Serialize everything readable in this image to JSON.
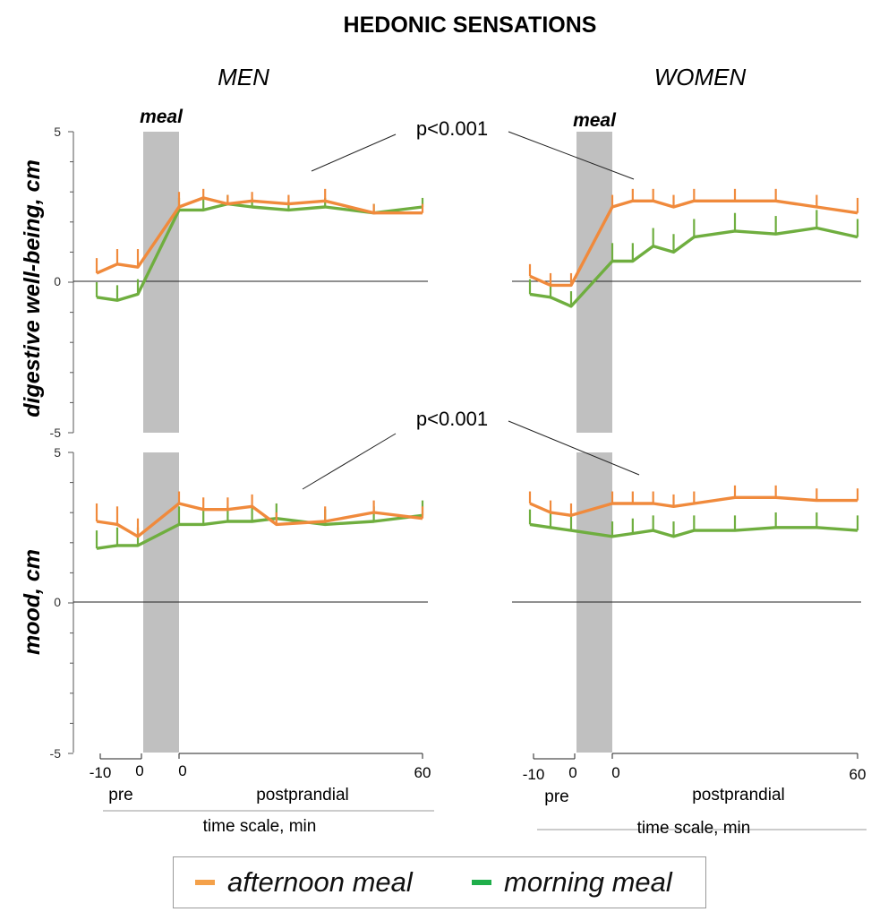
{
  "title": "HEDONIC SENSATIONS",
  "panels": {
    "men": "MEN",
    "women": "WOMEN"
  },
  "y_labels": {
    "top": "digestive well-being, cm",
    "bottom": "mood, cm"
  },
  "meal_label": "meal",
  "significance": {
    "top": "p<0.001",
    "bottom": "p<0.001"
  },
  "x_axis": {
    "ticks": [
      "-10",
      "0",
      "0",
      "60"
    ],
    "pre_label": "pre",
    "post_label": "postprandial",
    "label": "time scale, min"
  },
  "legend": {
    "afternoon": "afternoon meal",
    "morning": "morning meal"
  },
  "colors": {
    "afternoon": "#f08a3c",
    "morning": "#6fae3f",
    "meal_band": "#c0c0c0"
  },
  "chart_data": [
    {
      "type": "line",
      "panel": "MEN",
      "ylabel": "digestive well-being, cm",
      "ylim": [
        -5,
        5
      ],
      "series": [
        {
          "name": "afternoon meal",
          "pre_x": [
            -10,
            -5,
            0
          ],
          "pre_y": [
            0.3,
            0.6,
            0.5
          ],
          "post_x": [
            0,
            6,
            12,
            18,
            27,
            36,
            48,
            60
          ],
          "post_y": [
            2.5,
            2.8,
            2.6,
            2.7,
            2.6,
            2.7,
            2.3,
            2.3
          ],
          "err_pre": [
            0.5,
            0.5,
            0.6
          ],
          "err_post": [
            0.5,
            0.3,
            0.3,
            0.3,
            0.3,
            0.4,
            0.3,
            0.3
          ]
        },
        {
          "name": "morning meal",
          "pre_x": [
            -10,
            -5,
            0
          ],
          "pre_y": [
            -0.5,
            -0.6,
            -0.4
          ],
          "post_x": [
            0,
            6,
            12,
            18,
            27,
            36,
            48,
            60
          ],
          "post_y": [
            2.4,
            2.4,
            2.6,
            2.5,
            2.4,
            2.5,
            2.3,
            2.5
          ],
          "err_pre": [
            0.5,
            0.5,
            0.5
          ],
          "err_post": [
            0.4,
            0.4,
            0.3,
            0.3,
            0.3,
            0.3,
            0.3,
            0.3
          ]
        }
      ]
    },
    {
      "type": "line",
      "panel": "WOMEN",
      "ylabel": "digestive well-being, cm",
      "ylim": [
        -5,
        5
      ],
      "series": [
        {
          "name": "afternoon meal",
          "pre_x": [
            -10,
            -5,
            0
          ],
          "pre_y": [
            0.2,
            -0.1,
            -0.1
          ],
          "post_x": [
            0,
            6,
            12,
            18,
            24,
            36,
            48,
            60,
            72
          ],
          "post_y": [
            2.5,
            2.7,
            2.7,
            2.5,
            2.7,
            2.7,
            2.7,
            2.5,
            2.3
          ],
          "err_pre": [
            0.4,
            0.4,
            0.4
          ],
          "err_post": [
            0.4,
            0.4,
            0.4,
            0.4,
            0.4,
            0.4,
            0.4,
            0.4,
            0.5
          ]
        },
        {
          "name": "morning meal",
          "pre_x": [
            -10,
            -5,
            0
          ],
          "pre_y": [
            -0.4,
            -0.5,
            -0.8
          ],
          "post_x": [
            0,
            6,
            12,
            18,
            24,
            36,
            48,
            60,
            72
          ],
          "post_y": [
            0.7,
            0.7,
            1.2,
            1.0,
            1.5,
            1.7,
            1.6,
            1.8,
            1.5
          ],
          "err_pre": [
            0.5,
            0.5,
            0.5
          ],
          "err_post": [
            0.6,
            0.6,
            0.6,
            0.6,
            0.6,
            0.6,
            0.6,
            0.6,
            0.6
          ]
        }
      ]
    },
    {
      "type": "line",
      "panel": "MEN",
      "ylabel": "mood, cm",
      "ylim": [
        -5,
        5
      ],
      "series": [
        {
          "name": "afternoon meal",
          "pre_x": [
            -10,
            -5,
            0
          ],
          "pre_y": [
            2.7,
            2.6,
            2.2
          ],
          "post_x": [
            0,
            6,
            12,
            18,
            24,
            36,
            48,
            60
          ],
          "post_y": [
            3.3,
            3.1,
            3.1,
            3.2,
            2.6,
            2.7,
            3.0,
            2.8
          ],
          "err_pre": [
            0.6,
            0.6,
            0.6
          ],
          "err_post": [
            0.4,
            0.4,
            0.4,
            0.4,
            0.4,
            0.5,
            0.4,
            0.4
          ]
        },
        {
          "name": "morning meal",
          "pre_x": [
            -10,
            -5,
            0
          ],
          "pre_y": [
            1.8,
            1.9,
            1.9
          ],
          "post_x": [
            0,
            6,
            12,
            18,
            24,
            36,
            48,
            60
          ],
          "post_y": [
            2.6,
            2.6,
            2.7,
            2.7,
            2.8,
            2.6,
            2.7,
            2.9
          ],
          "err_pre": [
            0.6,
            0.6,
            0.6
          ],
          "err_post": [
            0.6,
            0.5,
            0.5,
            0.5,
            0.5,
            0.5,
            0.5,
            0.5
          ]
        }
      ]
    },
    {
      "type": "line",
      "panel": "WOMEN",
      "ylabel": "mood, cm",
      "ylim": [
        -5,
        5
      ],
      "series": [
        {
          "name": "afternoon meal",
          "pre_x": [
            -10,
            -5,
            0
          ],
          "pre_y": [
            3.3,
            3.0,
            2.9
          ],
          "post_x": [
            0,
            6,
            12,
            18,
            24,
            36,
            48,
            60,
            72
          ],
          "post_y": [
            3.3,
            3.3,
            3.3,
            3.2,
            3.3,
            3.5,
            3.5,
            3.4,
            3.4
          ],
          "err_pre": [
            0.4,
            0.4,
            0.4
          ],
          "err_post": [
            0.4,
            0.4,
            0.4,
            0.4,
            0.4,
            0.4,
            0.4,
            0.4,
            0.4
          ]
        },
        {
          "name": "morning meal",
          "pre_x": [
            -10,
            -5,
            0
          ],
          "pre_y": [
            2.6,
            2.5,
            2.4
          ],
          "post_x": [
            0,
            6,
            12,
            18,
            24,
            36,
            48,
            60,
            72
          ],
          "post_y": [
            2.2,
            2.3,
            2.4,
            2.2,
            2.4,
            2.4,
            2.5,
            2.5,
            2.4
          ],
          "err_pre": [
            0.5,
            0.5,
            0.5
          ],
          "err_post": [
            0.5,
            0.5,
            0.5,
            0.5,
            0.5,
            0.5,
            0.5,
            0.5,
            0.5
          ]
        }
      ]
    }
  ]
}
